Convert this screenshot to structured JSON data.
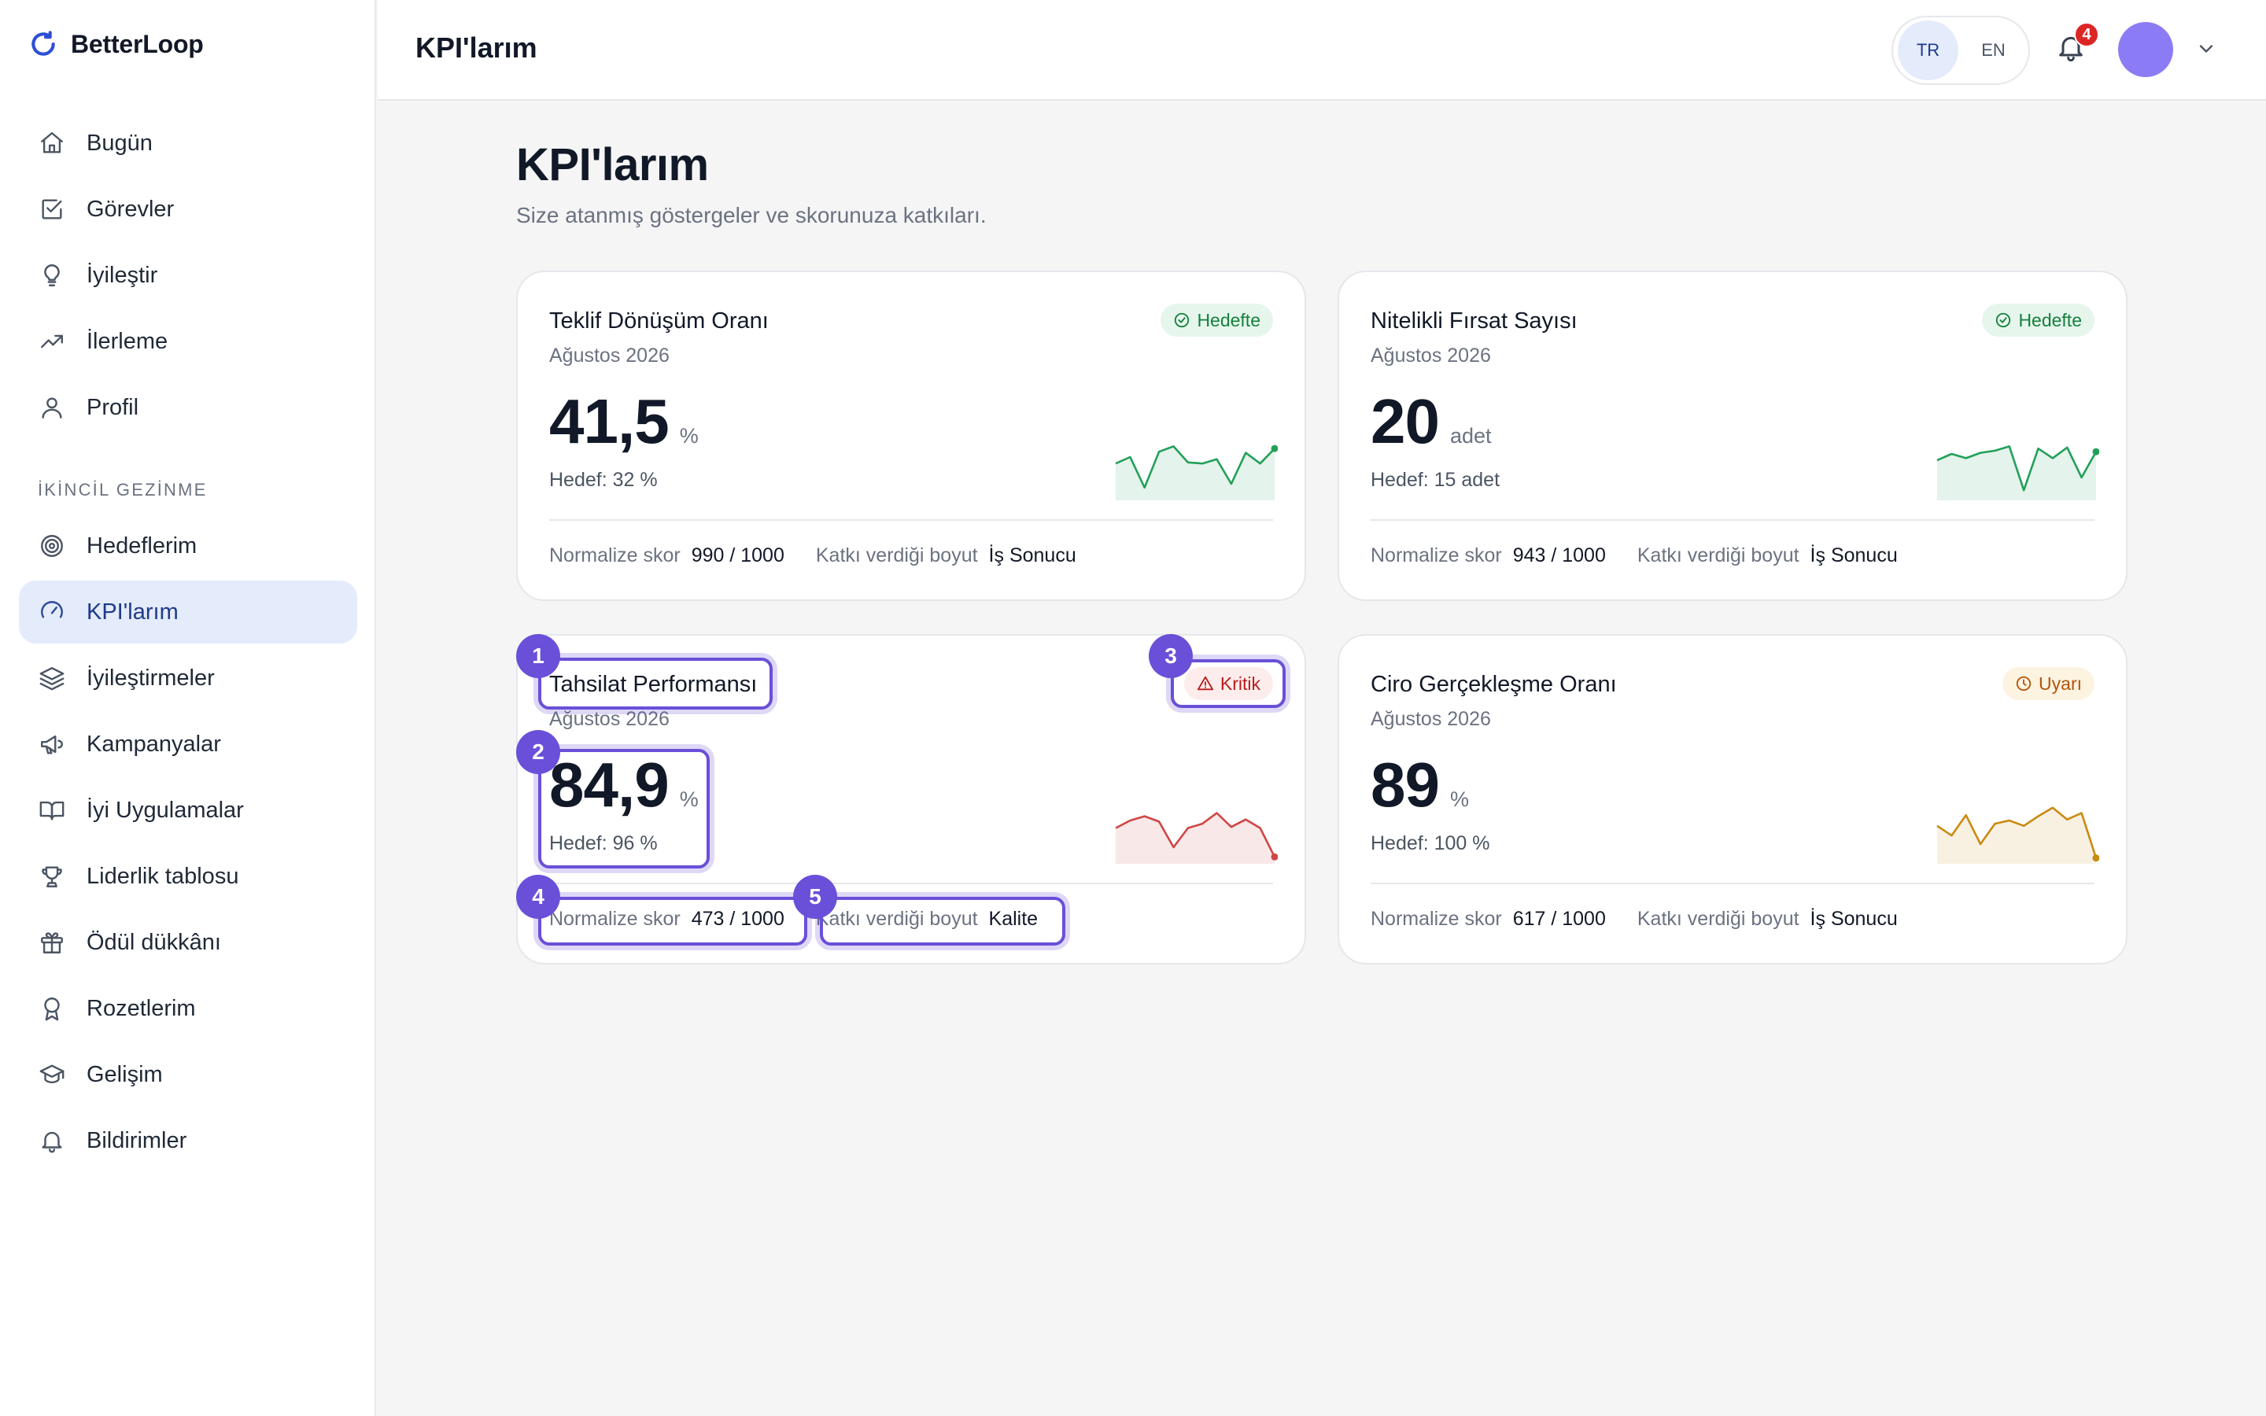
{
  "brand": {
    "name": "BetterLoop"
  },
  "sidebar": {
    "primary": [
      {
        "label": "Bugün",
        "icon": "home-icon"
      },
      {
        "label": "Görevler",
        "icon": "checkbox-icon"
      },
      {
        "label": "İyileştir",
        "icon": "lightbulb-icon"
      },
      {
        "label": "İlerleme",
        "icon": "trend-up-icon"
      },
      {
        "label": "Profil",
        "icon": "user-icon"
      }
    ],
    "section_label": "İKİNCİL GEZİNME",
    "secondary": [
      {
        "label": "Hedeflerim",
        "icon": "target-icon"
      },
      {
        "label": "KPI'larım",
        "icon": "gauge-icon",
        "active": true
      },
      {
        "label": "İyileştirmeler",
        "icon": "layers-icon"
      },
      {
        "label": "Kampanyalar",
        "icon": "megaphone-icon"
      },
      {
        "label": "İyi Uygulamalar",
        "icon": "book-icon"
      },
      {
        "label": "Liderlik tablosu",
        "icon": "trophy-icon"
      },
      {
        "label": "Ödül dükkânı",
        "icon": "gift-icon"
      },
      {
        "label": "Rozetlerim",
        "icon": "award-icon"
      },
      {
        "label": "Gelişim",
        "icon": "graduation-cap-icon"
      },
      {
        "label": "Bildirimler",
        "icon": "bell-icon"
      }
    ]
  },
  "topbar": {
    "title": "KPI'larım",
    "lang": {
      "tr": "TR",
      "en": "EN",
      "active": "TR"
    },
    "notification_count": "4"
  },
  "page": {
    "heading": "KPI'larım",
    "subtitle": "Size atanmış göstergeler ve skorunuza katkıları."
  },
  "labels": {
    "normalized_score": "Normalize skor",
    "dimension": "Katkı verdiği boyut"
  },
  "colors": {
    "ok": "#22a05a",
    "crit": "#d04545",
    "warn": "#c98a12",
    "accent": "#2d4a9a",
    "annotation": "#6a4fd8"
  },
  "kpis": [
    {
      "title": "Teklif Dönüşüm Oranı",
      "period": "Ağustos 2026",
      "status": "Hedefte",
      "status_type": "ok",
      "value": "41,5",
      "unit": "%",
      "target": "Hedef: 32 %",
      "score": "990 / 1000",
      "dimension": "İş Sonucu",
      "trend": [
        0.6,
        0.72,
        0.15,
        0.82,
        0.92,
        0.62,
        0.6,
        0.68,
        0.22,
        0.8,
        0.6,
        0.88
      ]
    },
    {
      "title": "Nitelikli Fırsat Sayısı",
      "period": "Ağustos 2026",
      "status": "Hedefte",
      "status_type": "ok",
      "value": "20",
      "unit": "adet",
      "target": "Hedef: 15 adet",
      "score": "943 / 1000",
      "dimension": "İş Sonucu",
      "trend": [
        0.66,
        0.78,
        0.7,
        0.8,
        0.84,
        0.92,
        0.1,
        0.88,
        0.7,
        0.9,
        0.34,
        0.82
      ]
    },
    {
      "title": "Tahsilat Performansı",
      "period": "Ağustos 2026",
      "status": "Kritik",
      "status_type": "crit",
      "value": "84,9",
      "unit": "%",
      "target": "Hedef: 96 %",
      "score": "473 / 1000",
      "dimension": "Kalite",
      "trend": [
        0.58,
        0.72,
        0.8,
        0.7,
        0.22,
        0.58,
        0.66,
        0.86,
        0.6,
        0.74,
        0.58,
        0.04
      ]
    },
    {
      "title": "Ciro Gerçekleşme Oranı",
      "period": "Ağustos 2026",
      "status": "Uyarı",
      "status_type": "warn",
      "value": "89",
      "unit": "%",
      "target": "Hedef: 100 %",
      "score": "617 / 1000",
      "dimension": "İş Sonucu",
      "trend": [
        0.62,
        0.44,
        0.82,
        0.28,
        0.66,
        0.72,
        0.62,
        0.8,
        0.96,
        0.74,
        0.86,
        0.02
      ]
    }
  ],
  "annotations": [
    "1",
    "2",
    "3",
    "4",
    "5"
  ]
}
